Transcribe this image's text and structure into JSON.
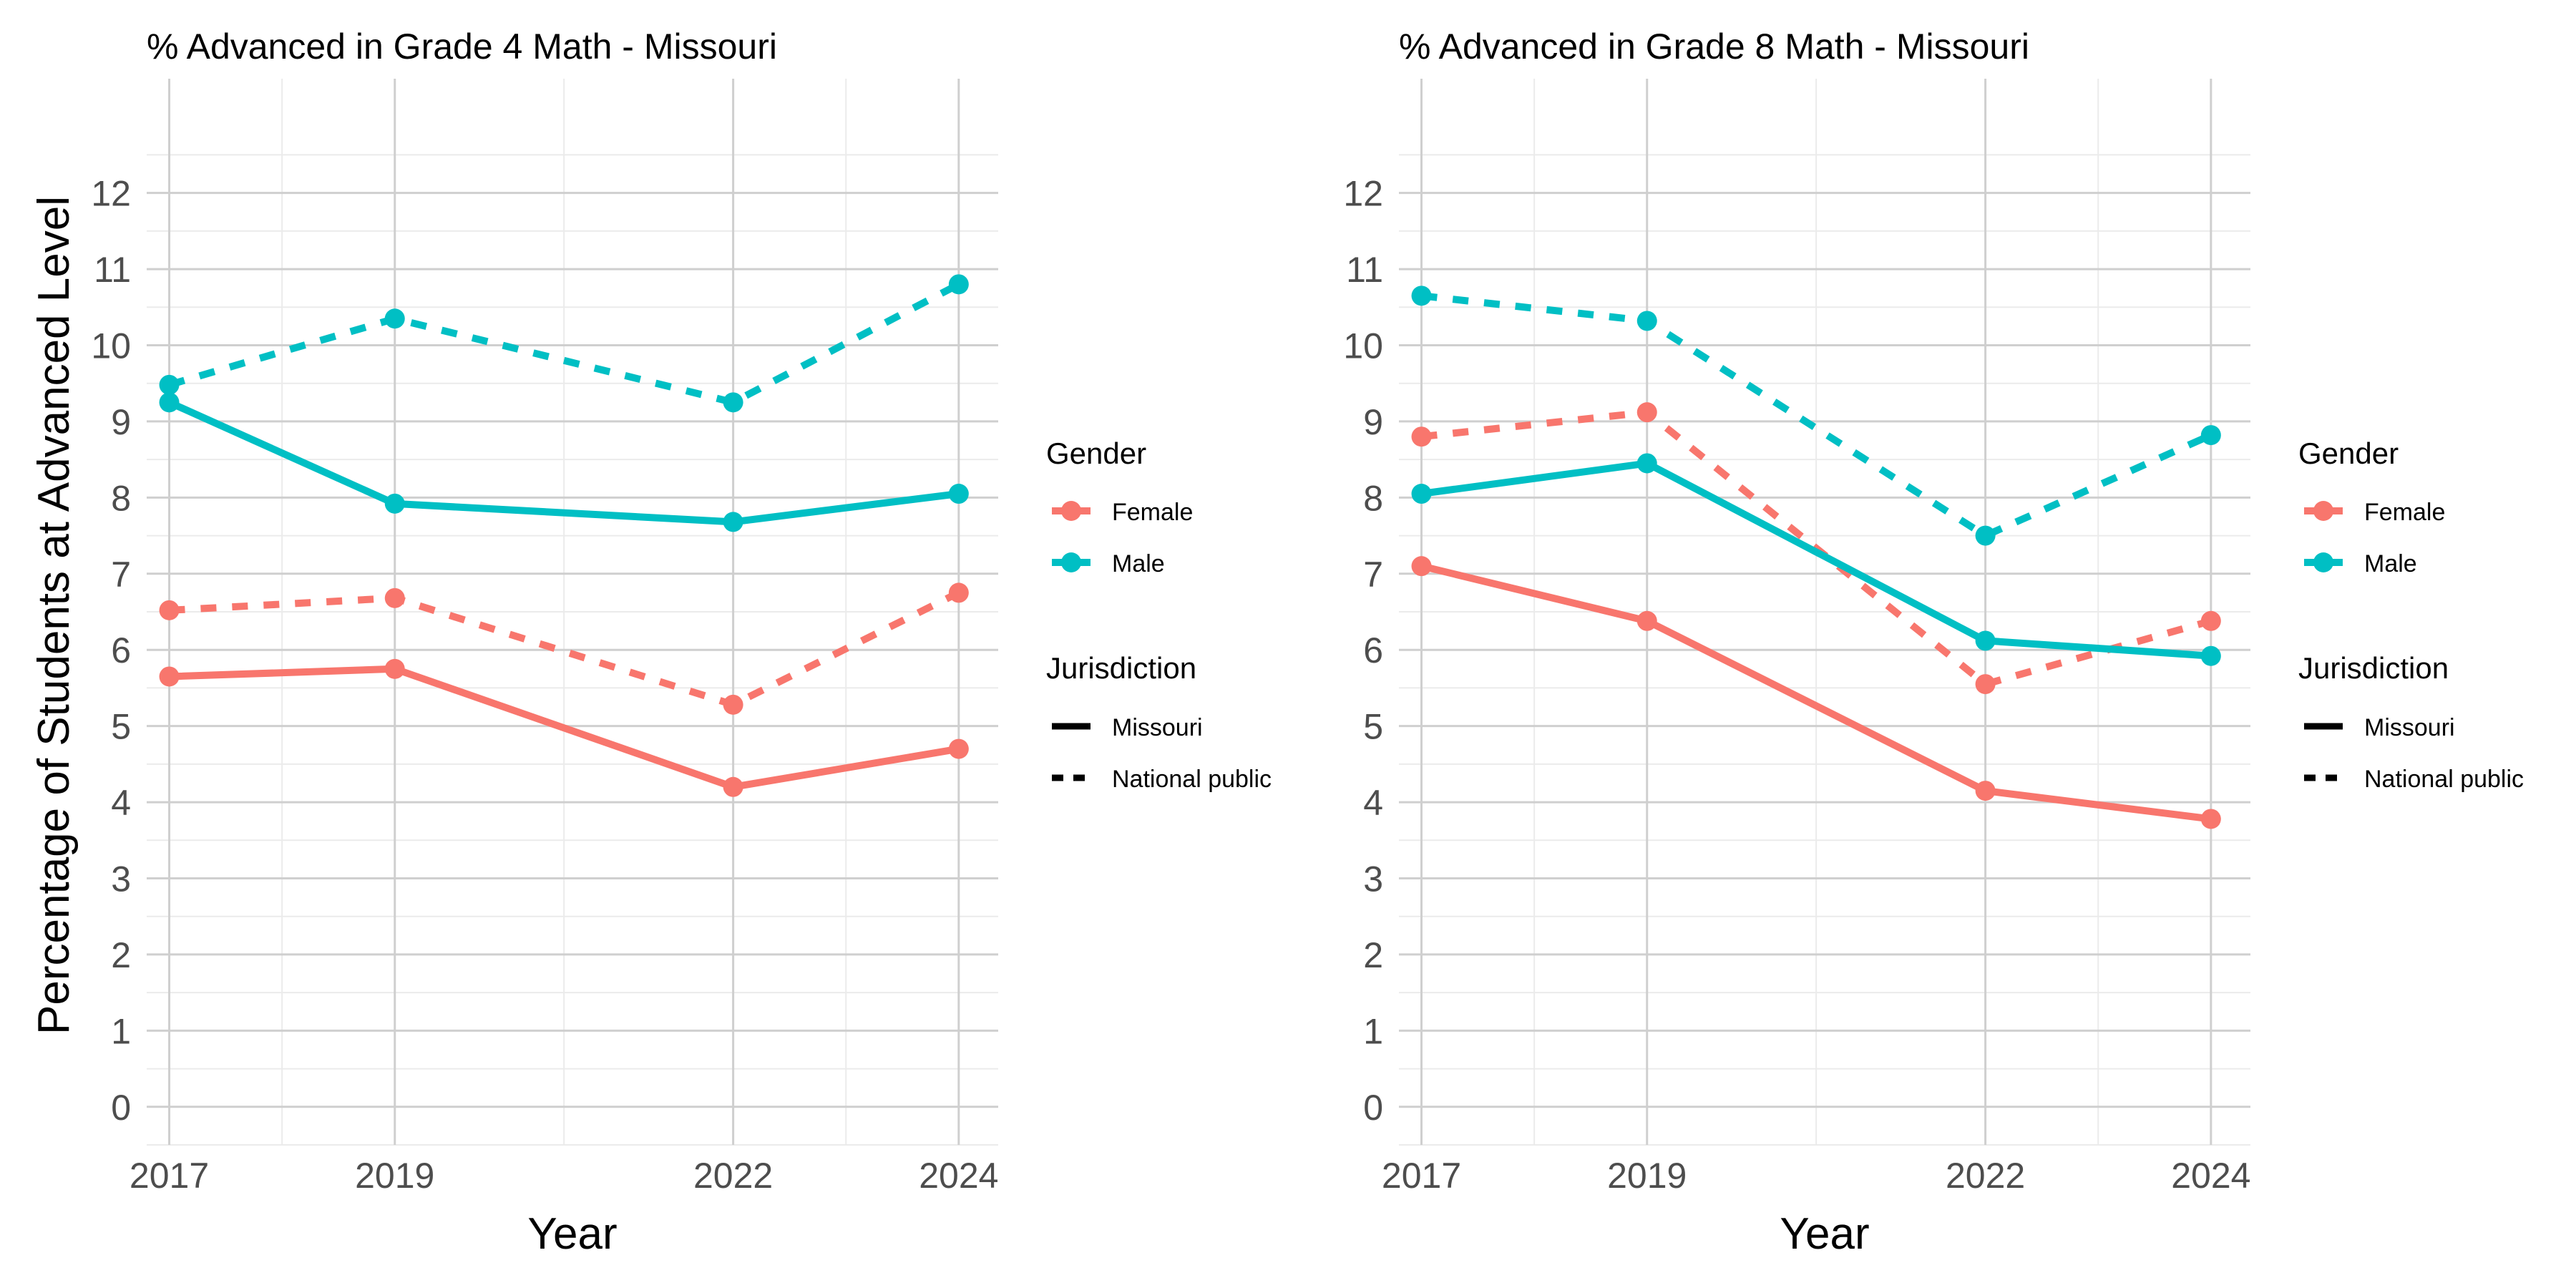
{
  "figure": {
    "shared_ylabel": "Percentage of Students at Advanced Level"
  },
  "legend": {
    "gender_title": "Gender",
    "gender_items": [
      {
        "label": "Female",
        "color": "#F8766D"
      },
      {
        "label": "Male",
        "color": "#00BFC4"
      }
    ],
    "jurisdiction_title": "Jurisdiction",
    "jurisdiction_items": [
      {
        "label": "Missouri",
        "linetype": "solid"
      },
      {
        "label": "National public",
        "linetype": "dashed"
      }
    ]
  },
  "chart_data": [
    {
      "type": "line",
      "title": "% Advanced in Grade 4 Math - Missouri",
      "xlabel": "Year",
      "ylabel": "Percentage of Students at Advanced Level",
      "x": [
        2017,
        2019,
        2022,
        2024
      ],
      "xlim": [
        2016.8,
        2024.35
      ],
      "ylim": [
        -0.5,
        13.5
      ],
      "yticks": [
        0,
        1,
        2,
        3,
        4,
        5,
        6,
        7,
        8,
        9,
        10,
        11,
        12
      ],
      "grid": true,
      "legend_position": "right",
      "series": [
        {
          "gender": "Female",
          "jurisdiction": "Missouri",
          "color": "#F8766D",
          "linetype": "solid",
          "values": [
            5.65,
            5.75,
            4.2,
            4.7
          ]
        },
        {
          "gender": "Female",
          "jurisdiction": "National public",
          "color": "#F8766D",
          "linetype": "dashed",
          "values": [
            6.52,
            6.68,
            5.28,
            6.75
          ]
        },
        {
          "gender": "Male",
          "jurisdiction": "Missouri",
          "color": "#00BFC4",
          "linetype": "solid",
          "values": [
            9.25,
            7.92,
            7.68,
            8.05
          ]
        },
        {
          "gender": "Male",
          "jurisdiction": "National public",
          "color": "#00BFC4",
          "linetype": "dashed",
          "values": [
            9.48,
            10.35,
            9.25,
            10.8
          ]
        }
      ]
    },
    {
      "type": "line",
      "title": "% Advanced in Grade 8 Math - Missouri",
      "xlabel": "Year",
      "ylabel": "",
      "x": [
        2017,
        2019,
        2022,
        2024
      ],
      "xlim": [
        2016.8,
        2024.35
      ],
      "ylim": [
        -0.5,
        13.5
      ],
      "yticks": [
        0,
        1,
        2,
        3,
        4,
        5,
        6,
        7,
        8,
        9,
        10,
        11,
        12
      ],
      "grid": true,
      "legend_position": "right",
      "series": [
        {
          "gender": "Female",
          "jurisdiction": "Missouri",
          "color": "#F8766D",
          "linetype": "solid",
          "values": [
            7.1,
            6.38,
            4.15,
            3.78
          ]
        },
        {
          "gender": "Female",
          "jurisdiction": "National public",
          "color": "#F8766D",
          "linetype": "dashed",
          "values": [
            8.8,
            9.12,
            5.55,
            6.38
          ]
        },
        {
          "gender": "Male",
          "jurisdiction": "Missouri",
          "color": "#00BFC4",
          "linetype": "solid",
          "values": [
            8.05,
            8.45,
            6.12,
            5.92
          ]
        },
        {
          "gender": "Male",
          "jurisdiction": "National public",
          "color": "#00BFC4",
          "linetype": "dashed",
          "values": [
            10.65,
            10.32,
            7.5,
            8.82
          ]
        }
      ]
    }
  ]
}
